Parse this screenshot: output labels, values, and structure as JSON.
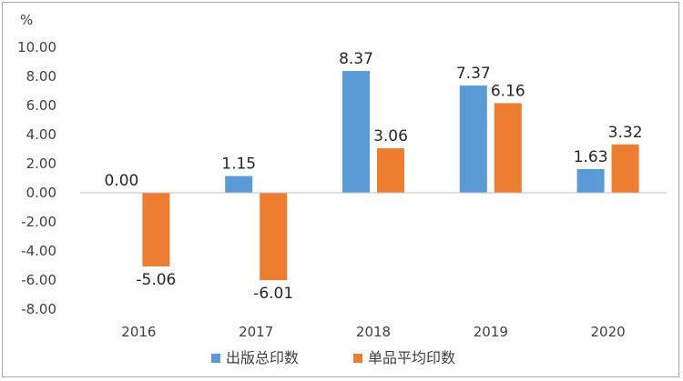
{
  "chart_data": {
    "type": "bar",
    "title": "",
    "ylabel": "%",
    "xlabel": "",
    "categories": [
      "2016",
      "2017",
      "2018",
      "2019",
      "2020"
    ],
    "series": [
      {
        "name": "出版总印数",
        "color": "#5b9bd5",
        "values": [
          0.0,
          1.15,
          8.37,
          7.37,
          1.63
        ],
        "labels": [
          "0.00",
          "1.15",
          "8.37",
          "7.37",
          "1.63"
        ]
      },
      {
        "name": "单品平均印数",
        "color": "#ed7d31",
        "values": [
          -5.06,
          -6.01,
          3.06,
          6.16,
          3.32
        ],
        "labels": [
          "-5.06",
          "-6.01",
          "3.06",
          "6.16",
          "3.32"
        ]
      }
    ],
    "ylim": [
      -8,
      10
    ],
    "yticks": [
      "10.00",
      "8.00",
      "6.00",
      "4.00",
      "2.00",
      "0.00",
      "-2.00",
      "-4.00",
      "-6.00",
      "-8.00"
    ],
    "grid": false,
    "legend": "bottom"
  }
}
